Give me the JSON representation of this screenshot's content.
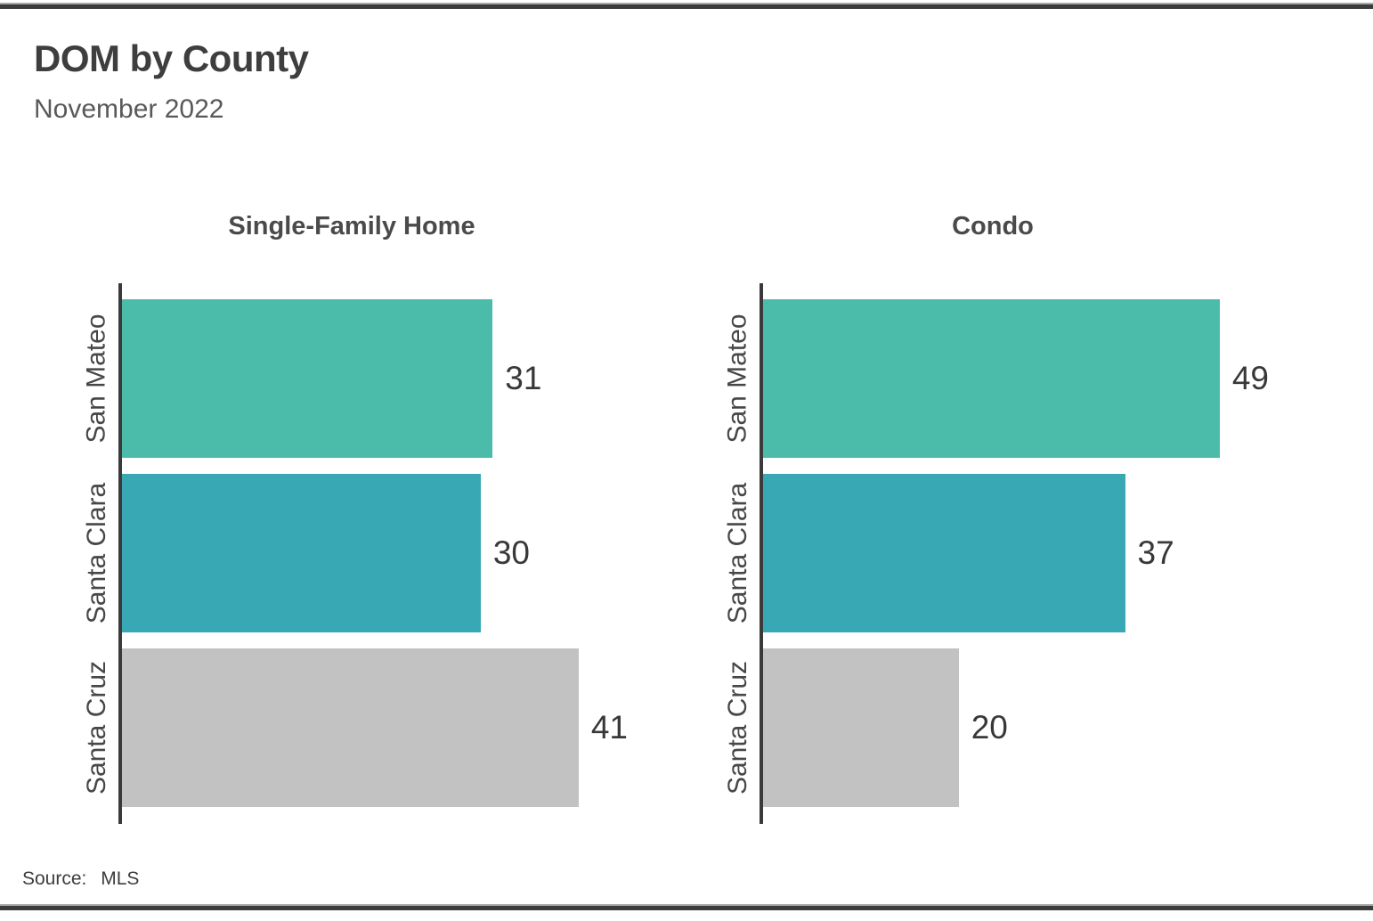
{
  "page": {
    "title": "DOM by County",
    "subtitle": "November 2022",
    "source_label": "Source:",
    "source_value": "MLS"
  },
  "colors": {
    "san_mateo_bar": "#4CBCAA",
    "santa_clara_bar": "#39A8B5",
    "santa_cruz_bar": "#C2C2C2",
    "axis": "#3A3A3A",
    "rule": "#3C3C3C",
    "title_text": "#3E3E3E",
    "subtitle_text": "#595959",
    "value_text": "#383838"
  },
  "chart_data": [
    {
      "type": "bar",
      "orientation": "horizontal",
      "title": "Single-Family Home",
      "categories": [
        "San Mateo",
        "Santa Clara",
        "Santa Cruz"
      ],
      "values": [
        31,
        30,
        41
      ],
      "bar_colors": [
        "#4CBCAA",
        "#39A8B5",
        "#C2C2C2"
      ],
      "data_labels": [
        "31",
        "30",
        "41"
      ],
      "xlim": [
        0,
        42.3
      ],
      "grid": false,
      "legend": false
    },
    {
      "type": "bar",
      "orientation": "horizontal",
      "title": "Condo",
      "categories": [
        "San Mateo",
        "Santa Clara",
        "Santa Cruz"
      ],
      "values": [
        49,
        37,
        20
      ],
      "bar_colors": [
        "#4CBCAA",
        "#39A8B5",
        "#C2C2C2"
      ],
      "data_labels": [
        "49",
        "37",
        "20"
      ],
      "xlim": [
        0,
        51.7
      ],
      "grid": false,
      "legend": false
    }
  ]
}
